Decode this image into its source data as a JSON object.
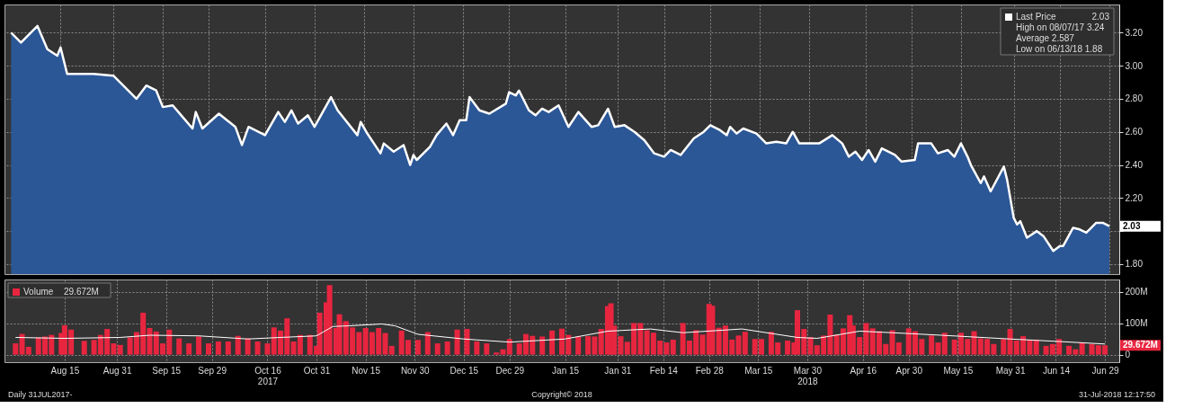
{
  "chart_data": [
    {
      "type": "area",
      "xlim": [
        "2017-07-29",
        "2018-07-02"
      ],
      "ylim": [
        1.74,
        3.37
      ],
      "yticks": [
        {
          "value": 1.8,
          "label": "1.80"
        },
        {
          "value": 2.0,
          "label": null
        },
        {
          "value": 2.2,
          "label": "2.20"
        },
        {
          "value": 2.4,
          "label": "2.40"
        },
        {
          "value": 2.6,
          "label": "2.60"
        },
        {
          "value": 2.8,
          "label": "2.80"
        },
        {
          "value": 3.0,
          "label": "3.00"
        },
        {
          "value": 3.2,
          "label": "3.20"
        }
      ],
      "xticks": [
        {
          "value": "2017-08-15",
          "label": null
        },
        {
          "value": "2017-08-31",
          "label": null
        },
        {
          "value": "2017-09-15",
          "label": null
        },
        {
          "value": "2017-09-29",
          "label": null
        },
        {
          "value": "2017-10-16",
          "label": null
        },
        {
          "value": "2017-10-31",
          "label": null
        },
        {
          "value": "2017-11-15",
          "label": null
        },
        {
          "value": "2017-11-30",
          "label": null
        },
        {
          "value": "2017-12-15",
          "label": null
        },
        {
          "value": "2017-12-29",
          "label": null
        },
        {
          "value": "2018-01-15",
          "label": null
        },
        {
          "value": "2018-01-31",
          "label": null
        },
        {
          "value": "2018-02-14",
          "label": null
        },
        {
          "value": "2018-02-28",
          "label": null
        },
        {
          "value": "2018-03-15",
          "label": null
        },
        {
          "value": "2018-03-30",
          "label": null
        },
        {
          "value": "2018-04-16",
          "label": null
        },
        {
          "value": "2018-04-30",
          "label": null
        },
        {
          "value": "2018-05-15",
          "label": null
        },
        {
          "value": "2018-05-31",
          "label": null
        },
        {
          "value": "2018-06-14",
          "label": null
        },
        {
          "value": "2018-06-29",
          "label": null
        }
      ],
      "tick_labels": "y",
      "grid": true,
      "legend": "top right",
      "series": [
        {
          "name": "Last Price",
          "color": "#2b5797",
          "x": [
            "2017-07-31",
            "2017-08-03",
            "2017-08-08",
            "2017-08-11",
            "2017-08-14",
            "2017-08-15",
            "2017-08-17",
            "2017-08-25",
            "2017-08-31",
            "2017-09-03",
            "2017-09-07",
            "2017-09-10",
            "2017-09-13",
            "2017-09-15",
            "2017-09-18",
            "2017-09-21",
            "2017-09-24",
            "2017-09-25",
            "2017-09-27",
            "2017-10-02",
            "2017-10-07",
            "2017-10-09",
            "2017-10-11",
            "2017-10-16",
            "2017-10-20",
            "2017-10-22",
            "2017-10-24",
            "2017-10-26",
            "2017-10-29",
            "2017-10-31",
            "2017-11-05",
            "2017-11-07",
            "2017-11-13",
            "2017-11-14",
            "2017-11-16",
            "2017-11-20",
            "2017-11-21",
            "2017-11-24",
            "2017-11-27",
            "2017-11-29",
            "2017-11-30",
            "2017-12-01",
            "2017-12-05",
            "2017-12-07",
            "2017-12-10",
            "2017-12-12",
            "2017-12-14",
            "2017-12-16",
            "2017-12-17",
            "2017-12-20",
            "2017-12-23",
            "2017-12-28",
            "2017-12-29",
            "2017-12-31",
            "2018-01-01",
            "2018-01-04",
            "2018-01-06",
            "2018-01-08",
            "2018-01-10",
            "2018-01-13",
            "2018-01-16",
            "2018-01-19",
            "2018-01-23",
            "2018-01-25",
            "2018-01-28",
            "2018-01-30",
            "2018-02-02",
            "2018-02-05",
            "2018-02-08",
            "2018-02-11",
            "2018-02-14",
            "2018-02-16",
            "2018-02-19",
            "2018-02-23",
            "2018-02-26",
            "2018-02-28",
            "2018-03-03",
            "2018-03-05",
            "2018-03-06",
            "2018-03-08",
            "2018-03-10",
            "2018-03-14",
            "2018-03-17",
            "2018-03-20",
            "2018-03-23",
            "2018-03-25",
            "2018-03-27",
            "2018-04-02",
            "2018-04-06",
            "2018-04-09",
            "2018-04-11",
            "2018-04-13",
            "2018-04-15",
            "2018-04-17",
            "2018-04-19",
            "2018-04-21",
            "2018-04-25",
            "2018-04-27",
            "2018-05-01",
            "2018-05-02",
            "2018-05-06",
            "2018-05-08",
            "2018-05-11",
            "2018-05-13",
            "2018-05-15",
            "2018-05-17",
            "2018-05-18",
            "2018-05-21",
            "2018-05-22",
            "2018-05-24",
            "2018-05-28",
            "2018-05-29",
            "2018-05-31",
            "2018-06-01",
            "2018-06-02",
            "2018-06-04",
            "2018-06-07",
            "2018-06-09",
            "2018-06-12",
            "2018-06-14",
            "2018-06-15",
            "2018-06-18",
            "2018-06-20",
            "2018-06-22",
            "2018-06-25",
            "2018-06-27",
            "2018-06-29"
          ],
          "values": [
            3.2,
            3.14,
            3.24,
            3.1,
            3.06,
            3.11,
            2.95,
            2.95,
            2.94,
            2.88,
            2.8,
            2.88,
            2.85,
            2.75,
            2.76,
            2.69,
            2.62,
            2.72,
            2.62,
            2.71,
            2.63,
            2.52,
            2.63,
            2.58,
            2.72,
            2.66,
            2.73,
            2.65,
            2.7,
            2.63,
            2.81,
            2.73,
            2.58,
            2.66,
            2.59,
            2.47,
            2.53,
            2.48,
            2.52,
            2.4,
            2.46,
            2.43,
            2.51,
            2.58,
            2.65,
            2.58,
            2.67,
            2.67,
            2.81,
            2.73,
            2.71,
            2.77,
            2.84,
            2.82,
            2.85,
            2.73,
            2.7,
            2.74,
            2.72,
            2.76,
            2.63,
            2.72,
            2.63,
            2.64,
            2.74,
            2.63,
            2.64,
            2.6,
            2.55,
            2.47,
            2.45,
            2.49,
            2.46,
            2.56,
            2.6,
            2.64,
            2.61,
            2.58,
            2.63,
            2.59,
            2.62,
            2.59,
            2.53,
            2.54,
            2.53,
            2.6,
            2.53,
            2.53,
            2.58,
            2.53,
            2.45,
            2.48,
            2.43,
            2.49,
            2.42,
            2.5,
            2.46,
            2.42,
            2.43,
            2.53,
            2.53,
            2.47,
            2.49,
            2.45,
            2.53,
            2.45,
            2.4,
            2.29,
            2.33,
            2.24,
            2.39,
            2.31,
            2.08,
            2.04,
            2.06,
            1.96,
            2.0,
            1.97,
            1.88,
            1.91,
            1.91,
            2.02,
            2.01,
            1.99,
            2.05,
            2.05,
            2.03
          ]
        }
      ],
      "annotations": [
        "2.03",
        "High on 08/07/17 3.24",
        "Average 2.587",
        "Low on 06/13/18 1.88",
        {
          "text": "2.03",
          "x": "2018-06-29",
          "y": 2.03
        }
      ]
    },
    {
      "type": "bar",
      "xlim": [
        "2017-07-29",
        "2018-07-02"
      ],
      "ylim": [
        -24,
        240
      ],
      "yticks": [
        0,
        {
          "value": 100,
          "label": "100M"
        },
        {
          "value": 200,
          "label": "200M"
        }
      ],
      "xticks": [
        {
          "value": "2017-08-15",
          "label": "Aug 15"
        },
        {
          "value": "2017-08-31",
          "label": "Aug 31"
        },
        {
          "value": "2017-09-15",
          "label": "Sep 15"
        },
        {
          "value": "2017-09-29",
          "label": "Sep 29"
        },
        {
          "value": "2017-10-16",
          "label": "Oct 16\n2017"
        },
        {
          "value": "2017-10-31",
          "label": "Oct 31"
        },
        {
          "value": "2017-11-15",
          "label": "Nov 15"
        },
        {
          "value": "2017-11-30",
          "label": "Nov 30"
        },
        {
          "value": "2017-12-15",
          "label": "Dec 15"
        },
        {
          "value": "2017-12-29",
          "label": "Dec 29"
        },
        {
          "value": "2018-01-15",
          "label": "Jan 15"
        },
        {
          "value": "2018-01-31",
          "label": "Jan 31"
        },
        {
          "value": "2018-02-14",
          "label": "Feb 14"
        },
        {
          "value": "2018-02-28",
          "label": "Feb 28"
        },
        {
          "value": "2018-03-15",
          "label": "Mar 15"
        },
        {
          "value": "2018-03-30",
          "label": "Mar 30\n2018"
        },
        {
          "value": "2018-04-16",
          "label": "Apr 16"
        },
        {
          "value": "2018-04-30",
          "label": "Apr 30"
        },
        {
          "value": "2018-05-15",
          "label": "May 15"
        },
        {
          "value": "2018-05-31",
          "label": "May 31"
        },
        {
          "value": "2018-06-14",
          "label": "Jun 14"
        },
        {
          "value": "2018-06-29",
          "label": "Jun 29"
        }
      ],
      "grid": true,
      "legend": "top left",
      "series": [
        {
          "name": "Volume",
          "color": "#e8253f",
          "x": [
            "2017-07-31",
            "2017-08-02",
            "2017-08-04",
            "2017-08-07",
            "2017-08-09",
            "2017-08-11",
            "2017-08-14",
            "2017-08-15",
            "2017-08-17",
            "2017-08-21",
            "2017-08-24",
            "2017-08-26",
            "2017-08-28",
            "2017-08-30",
            "2017-09-01",
            "2017-09-04",
            "2017-09-06",
            "2017-09-08",
            "2017-09-10",
            "2017-09-12",
            "2017-09-14",
            "2017-09-16",
            "2017-09-19",
            "2017-09-22",
            "2017-09-25",
            "2017-09-28",
            "2017-10-01",
            "2017-10-04",
            "2017-10-07",
            "2017-10-10",
            "2017-10-13",
            "2017-10-16",
            "2017-10-18",
            "2017-10-20",
            "2017-10-22",
            "2017-10-24",
            "2017-10-26",
            "2017-10-29",
            "2017-10-31",
            "2017-11-01",
            "2017-11-03",
            "2017-11-04",
            "2017-11-06",
            "2017-11-07",
            "2017-11-09",
            "2017-11-11",
            "2017-11-13",
            "2017-11-15",
            "2017-11-17",
            "2017-11-19",
            "2017-11-21",
            "2017-11-23",
            "2017-11-26",
            "2017-11-28",
            "2017-12-01",
            "2017-12-04",
            "2017-12-07",
            "2017-12-10",
            "2017-12-13",
            "2017-12-16",
            "2017-12-19",
            "2017-12-22",
            "2017-12-25",
            "2017-12-27",
            "2017-12-29",
            "2018-01-01",
            "2018-01-03",
            "2018-01-05",
            "2018-01-08",
            "2018-01-11",
            "2018-01-14",
            "2018-01-16",
            "2018-01-19",
            "2018-01-22",
            "2018-01-24",
            "2018-01-26",
            "2018-01-28",
            "2018-01-29",
            "2018-01-30",
            "2018-02-01",
            "2018-02-03",
            "2018-02-05",
            "2018-02-07",
            "2018-02-09",
            "2018-02-11",
            "2018-02-13",
            "2018-02-15",
            "2018-02-17",
            "2018-02-20",
            "2018-02-22",
            "2018-02-24",
            "2018-02-26",
            "2018-02-28",
            "2018-03-01",
            "2018-03-03",
            "2018-03-05",
            "2018-03-07",
            "2018-03-09",
            "2018-03-11",
            "2018-03-14",
            "2018-03-16",
            "2018-03-19",
            "2018-03-21",
            "2018-03-24",
            "2018-03-26",
            "2018-03-27",
            "2018-03-29",
            "2018-03-31",
            "2018-04-02",
            "2018-04-04",
            "2018-04-06",
            "2018-04-08",
            "2018-04-10",
            "2018-04-12",
            "2018-04-13",
            "2018-04-15",
            "2018-04-17",
            "2018-04-19",
            "2018-04-21",
            "2018-04-23",
            "2018-04-25",
            "2018-04-27",
            "2018-04-30",
            "2018-05-02",
            "2018-05-04",
            "2018-05-07",
            "2018-05-09",
            "2018-05-11",
            "2018-05-14",
            "2018-05-16",
            "2018-05-18",
            "2018-05-20",
            "2018-05-22",
            "2018-05-24",
            "2018-05-26",
            "2018-05-29",
            "2018-05-31",
            "2018-06-02",
            "2018-06-04",
            "2018-06-06",
            "2018-06-08",
            "2018-06-11",
            "2018-06-13",
            "2018-06-15",
            "2018-06-18",
            "2018-06-20",
            "2018-06-22",
            "2018-06-25",
            "2018-06-27",
            "2018-06-29"
          ],
          "values": [
            36,
            66,
            25,
            55,
            58,
            63,
            69,
            94,
            80,
            44,
            47,
            63,
            82,
            36,
            31,
            55,
            72,
            134,
            85,
            74,
            36,
            80,
            52,
            36,
            58,
            36,
            42,
            42,
            60,
            52,
            42,
            36,
            87,
            77,
            116,
            42,
            63,
            63,
            28,
            134,
            167,
            222,
            85,
            129,
            107,
            87,
            72,
            85,
            72,
            85,
            69,
            28,
            77,
            47,
            47,
            72,
            36,
            42,
            80,
            82,
            42,
            36,
            7,
            17,
            50,
            36,
            66,
            60,
            58,
            77,
            83,
            63,
            58,
            59,
            58,
            82,
            155,
            164,
            93,
            59,
            41,
            101,
            101,
            78,
            70,
            45,
            39,
            48,
            101,
            45,
            78,
            64,
            162,
            156,
            86,
            93,
            48,
            61,
            73,
            50,
            50,
            73,
            39,
            45,
            39,
            142,
            82,
            56,
            30,
            61,
            128,
            64,
            84,
            126,
            93,
            56,
            101,
            84,
            75,
            34,
            78,
            39,
            84,
            75,
            50,
            61,
            39,
            70,
            48,
            70,
            50,
            75,
            52,
            50,
            34,
            50,
            82,
            45,
            59,
            48,
            48,
            28,
            34,
            50,
            28,
            17,
            39,
            34,
            30,
            29.672
          ]
        },
        {
          "type": "line",
          "color": "#ffffff",
          "x": [
            "2017-07-31",
            "2017-08-15",
            "2017-09-01",
            "2017-09-10",
            "2017-09-25",
            "2017-10-10",
            "2017-10-20",
            "2017-10-31",
            "2017-11-05",
            "2017-11-10",
            "2017-11-20",
            "2017-11-24",
            "2017-12-01",
            "2017-12-15",
            "2017-12-29",
            "2018-01-15",
            "2018-01-28",
            "2018-02-10",
            "2018-02-20",
            "2018-03-10",
            "2018-03-27",
            "2018-04-02",
            "2018-04-15",
            "2018-04-25",
            "2018-05-10",
            "2018-05-31",
            "2018-06-15",
            "2018-06-29"
          ],
          "values": [
            55,
            52,
            55,
            62,
            60,
            50,
            55,
            60,
            90,
            92,
            98,
            92,
            65,
            50,
            40,
            50,
            75,
            82,
            70,
            82,
            55,
            52,
            75,
            70,
            62,
            50,
            42,
            34
          ]
        }
      ],
      "annotations": [
        "29.672M",
        {
          "text": "29.672M",
          "x": "2018-06-29",
          "y": 29.672
        },
        "Daily 31JUL2017-",
        "Copyright© 2018",
        "31-Jul-2018 12:17:50"
      ]
    }
  ]
}
